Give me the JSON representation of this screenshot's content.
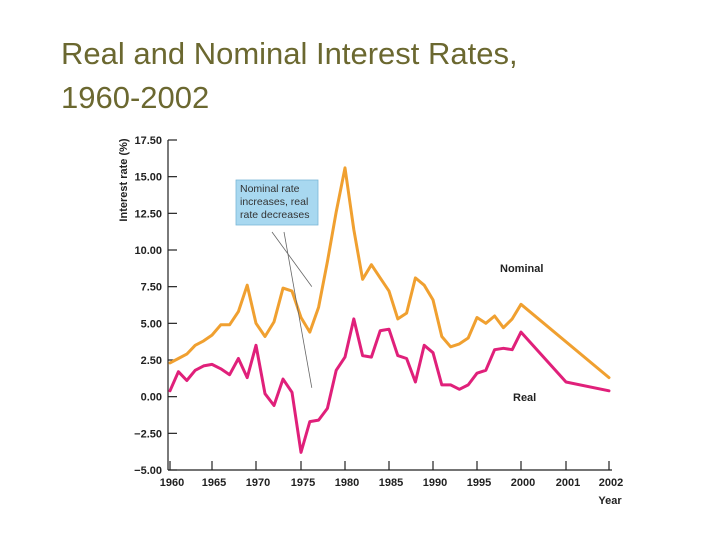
{
  "title_lines": [
    "Real and Nominal Interest Rates,",
    "1960-2002"
  ],
  "chart_data": {
    "type": "line",
    "title": "Real and Nominal Interest Rates, 1960-2002",
    "xlabel": "Year",
    "ylabel": "Interest rate (%)",
    "ylim": [
      -5.0,
      17.5
    ],
    "yticks": [
      "17.50",
      "15.00",
      "12.50",
      "10.00",
      "7.50",
      "5.00",
      "2.50",
      "0.00",
      "−2.50",
      "−5.00"
    ],
    "ytick_values": [
      17.5,
      15,
      12.5,
      10,
      7.5,
      5,
      2.5,
      0,
      -2.5,
      -5
    ],
    "xticks": [
      "1960",
      "1965",
      "1970",
      "1975",
      "1980",
      "1985",
      "1990",
      "1995",
      "2000",
      "2001",
      "2002"
    ],
    "xtick_values": [
      1960,
      1965,
      1970,
      1975,
      1980,
      1985,
      1990,
      1995,
      2000,
      2001,
      2002
    ],
    "grid": false,
    "series": [
      {
        "name": "Nominal",
        "color": "#f0a030",
        "points": [
          [
            1960,
            2.3
          ],
          [
            1961,
            2.6
          ],
          [
            1962,
            2.9
          ],
          [
            1963,
            3.5
          ],
          [
            1964,
            3.8
          ],
          [
            1965,
            4.2
          ],
          [
            1966,
            4.9
          ],
          [
            1967,
            4.9
          ],
          [
            1968,
            5.8
          ],
          [
            1969,
            7.6
          ],
          [
            1970,
            5.0
          ],
          [
            1971,
            4.1
          ],
          [
            1972,
            5.1
          ],
          [
            1973,
            7.4
          ],
          [
            1974,
            7.2
          ],
          [
            1975,
            5.4
          ],
          [
            1976,
            4.4
          ],
          [
            1977,
            6.1
          ],
          [
            1978,
            9.2
          ],
          [
            1979,
            12.6
          ],
          [
            1980,
            15.6
          ],
          [
            1981,
            11.4
          ],
          [
            1982,
            8.0
          ],
          [
            1983,
            9.0
          ],
          [
            1984,
            8.1
          ],
          [
            1985,
            7.2
          ],
          [
            1986,
            5.3
          ],
          [
            1987,
            5.7
          ],
          [
            1988,
            8.1
          ],
          [
            1989,
            7.6
          ],
          [
            1990,
            6.6
          ],
          [
            1991,
            4.1
          ],
          [
            1992,
            3.4
          ],
          [
            1993,
            3.6
          ],
          [
            1994,
            4.0
          ],
          [
            1995,
            5.4
          ],
          [
            1996,
            5.0
          ],
          [
            1997,
            5.5
          ],
          [
            1998,
            4.7
          ],
          [
            1999,
            5.3
          ],
          [
            2000,
            6.3
          ],
          [
            2002,
            1.3
          ]
        ]
      },
      {
        "name": "Real",
        "color": "#e0207a",
        "points": [
          [
            1960,
            0.4
          ],
          [
            1961,
            1.7
          ],
          [
            1962,
            1.1
          ],
          [
            1963,
            1.8
          ],
          [
            1964,
            2.1
          ],
          [
            1965,
            2.2
          ],
          [
            1966,
            1.9
          ],
          [
            1967,
            1.5
          ],
          [
            1968,
            2.6
          ],
          [
            1969,
            1.3
          ],
          [
            1970,
            3.5
          ],
          [
            1971,
            0.2
          ],
          [
            1972,
            -0.6
          ],
          [
            1973,
            1.2
          ],
          [
            1974,
            0.3
          ],
          [
            1975,
            -3.8
          ],
          [
            1976,
            -1.7
          ],
          [
            1977,
            -1.6
          ],
          [
            1978,
            -0.8
          ],
          [
            1979,
            1.8
          ],
          [
            1980,
            2.7
          ],
          [
            1981,
            5.3
          ],
          [
            1982,
            2.8
          ],
          [
            1983,
            2.7
          ],
          [
            1984,
            4.5
          ],
          [
            1985,
            4.6
          ],
          [
            1986,
            2.8
          ],
          [
            1987,
            2.6
          ],
          [
            1988,
            1.0
          ],
          [
            1989,
            3.5
          ],
          [
            1990,
            3.0
          ],
          [
            1991,
            0.8
          ],
          [
            1992,
            0.8
          ],
          [
            1993,
            0.5
          ],
          [
            1994,
            0.8
          ],
          [
            1995,
            1.6
          ],
          [
            1996,
            1.8
          ],
          [
            1997,
            3.2
          ],
          [
            1998,
            3.3
          ],
          [
            1999,
            3.2
          ],
          [
            2000,
            4.4
          ],
          [
            2001,
            1.0
          ],
          [
            2002,
            0.4
          ]
        ]
      }
    ],
    "annotation": {
      "lines": [
        "Nominal rate",
        "increases, real",
        "rate decreases"
      ],
      "box_color": "#a8d8f0",
      "points_to": [
        [
          1976,
          7.5
        ],
        [
          1976,
          0.6
        ]
      ]
    }
  }
}
